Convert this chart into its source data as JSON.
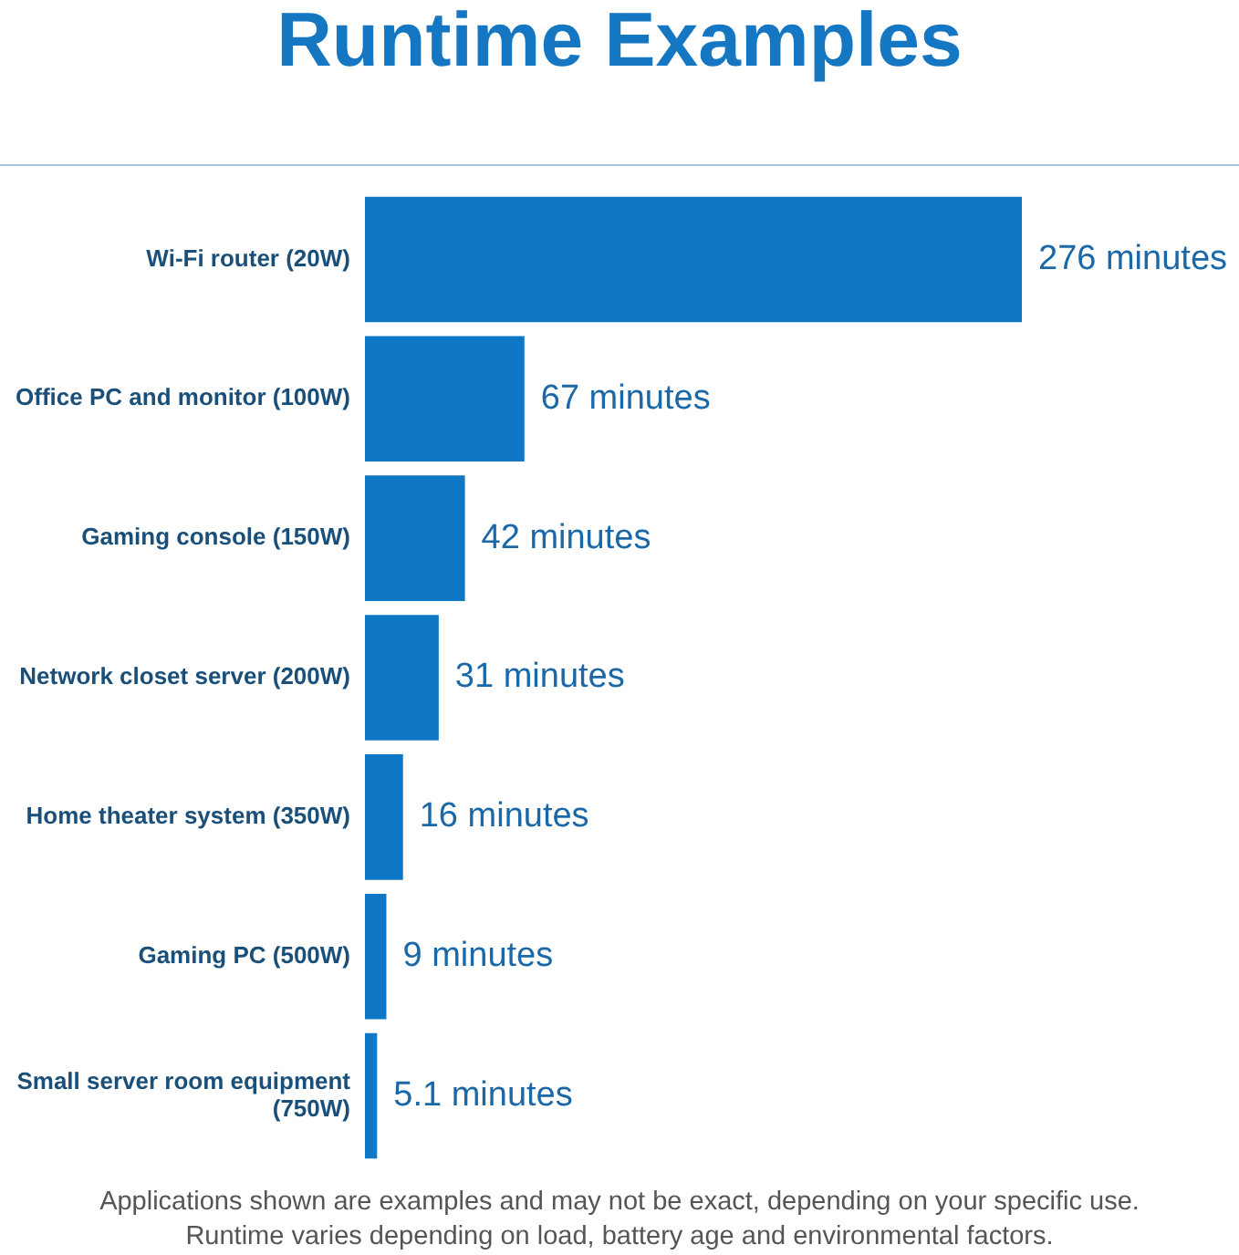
{
  "chart_data": {
    "type": "bar",
    "orientation": "horizontal",
    "title": "Runtime Examples",
    "categories": [
      "Wi-Fi router (20W)",
      "Office PC and monitor (100W)",
      "Gaming console (150W)",
      "Network closet server (200W)",
      "Home theater system (350W)",
      "Gaming PC (500W)",
      "Small server room equipment (750W)"
    ],
    "values": [
      276,
      67,
      42,
      31,
      16,
      9,
      5.1
    ],
    "value_labels": [
      "276 minutes",
      "67 minutes",
      "42 minutes",
      "31 minutes",
      "16 minutes",
      "9 minutes",
      "5.1 minutes"
    ],
    "color": "#0f78c6",
    "annotations": [
      "Applications shown are examples and may not be exact, depending on your specific use.",
      "Runtime varies depending on load, battery age and environmental factors."
    ]
  }
}
